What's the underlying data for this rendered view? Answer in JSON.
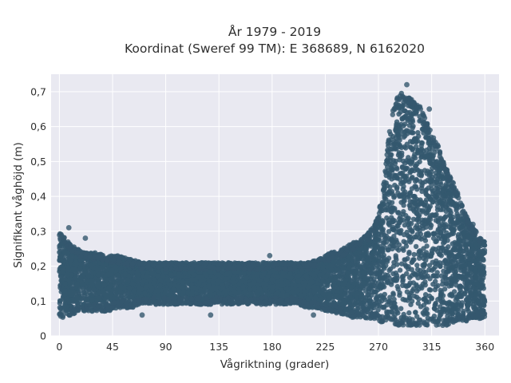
{
  "chart_data": {
    "type": "scatter",
    "title_line1": "År 1979 - 2019",
    "title_line2": "Koordinat (Sweref 99 TM): E 368689, N 6162020",
    "xlabel": "Vågriktning (grader)",
    "ylabel": "Signifikant våghöjd (m)",
    "xlim": [
      -7,
      372
    ],
    "ylim": [
      0,
      0.75
    ],
    "xticks": [
      0,
      45,
      90,
      135,
      180,
      225,
      270,
      315,
      360
    ],
    "xtick_labels": [
      "0",
      "45",
      "90",
      "135",
      "180",
      "225",
      "270",
      "315",
      "360"
    ],
    "yticks": [
      0,
      0.1,
      0.2,
      0.3,
      0.4,
      0.5,
      0.6,
      0.7
    ],
    "ytick_labels": [
      "0",
      "0,1",
      "0,2",
      "0,3",
      "0,4",
      "0,5",
      "0,6",
      "0,7"
    ],
    "grid": true,
    "background": "#e9e9f1",
    "point_color": "#34586e",
    "envelope": {
      "direction": [
        0,
        10,
        20,
        30,
        40,
        50,
        60,
        70,
        80,
        90,
        100,
        110,
        120,
        130,
        140,
        150,
        160,
        170,
        180,
        190,
        200,
        210,
        220,
        225,
        230,
        240,
        250,
        260,
        265,
        270,
        275,
        280,
        285,
        290,
        295,
        300,
        305,
        310,
        315,
        320,
        325,
        330,
        335,
        340,
        345,
        350,
        355,
        360
      ],
      "max_height": [
        0.3,
        0.26,
        0.24,
        0.24,
        0.23,
        0.23,
        0.22,
        0.21,
        0.21,
        0.21,
        0.21,
        0.21,
        0.21,
        0.21,
        0.21,
        0.21,
        0.21,
        0.21,
        0.21,
        0.21,
        0.21,
        0.21,
        0.22,
        0.23,
        0.24,
        0.25,
        0.27,
        0.29,
        0.31,
        0.35,
        0.45,
        0.62,
        0.68,
        0.7,
        0.69,
        0.67,
        0.66,
        0.62,
        0.58,
        0.55,
        0.5,
        0.46,
        0.43,
        0.38,
        0.34,
        0.31,
        0.29,
        0.27
      ],
      "min_height": [
        0.05,
        0.06,
        0.07,
        0.07,
        0.07,
        0.08,
        0.08,
        0.09,
        0.09,
        0.09,
        0.09,
        0.09,
        0.09,
        0.09,
        0.09,
        0.09,
        0.09,
        0.09,
        0.09,
        0.09,
        0.09,
        0.08,
        0.08,
        0.07,
        0.07,
        0.06,
        0.05,
        0.05,
        0.05,
        0.04,
        0.04,
        0.04,
        0.03,
        0.03,
        0.03,
        0.03,
        0.03,
        0.03,
        0.03,
        0.03,
        0.03,
        0.03,
        0.04,
        0.04,
        0.04,
        0.05,
        0.05,
        0.05
      ]
    },
    "scattered_points": [
      {
        "x": 8,
        "y": 0.31
      },
      {
        "x": 22,
        "y": 0.28
      },
      {
        "x": 178,
        "y": 0.23
      },
      {
        "x": 243,
        "y": 0.25
      },
      {
        "x": 294,
        "y": 0.72
      },
      {
        "x": 313,
        "y": 0.65
      },
      {
        "x": 308,
        "y": 0.04
      },
      {
        "x": 128,
        "y": 0.06
      },
      {
        "x": 215,
        "y": 0.06
      },
      {
        "x": 70,
        "y": 0.06
      },
      {
        "x": 350,
        "y": 0.32
      },
      {
        "x": 335,
        "y": 0.05
      }
    ]
  }
}
